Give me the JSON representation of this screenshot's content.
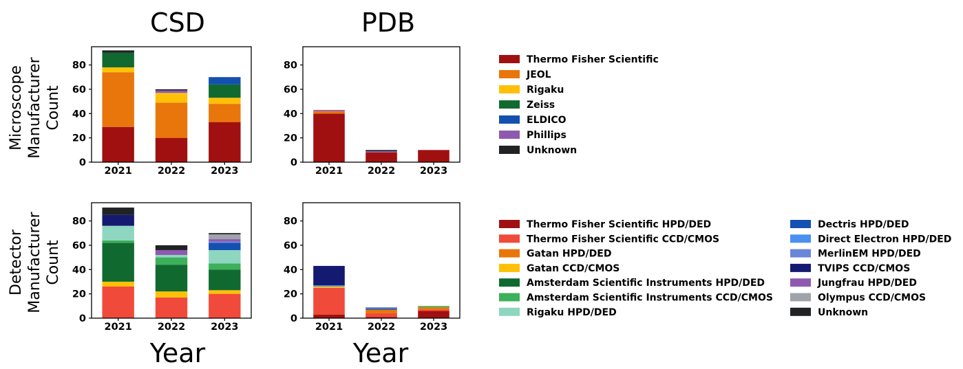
{
  "column_titles": [
    "CSD",
    "PDB"
  ],
  "row_labels": [
    [
      "Microscope",
      "Manufacturer",
      "Count"
    ],
    [
      "Detector",
      "Manufacturer",
      "Count"
    ]
  ],
  "x_label": "Year",
  "legends": {
    "microscope": [
      {
        "name": "Thermo Fisher Scientific",
        "color": "#A01010"
      },
      {
        "name": "JEOL",
        "color": "#E8760A"
      },
      {
        "name": "Rigaku",
        "color": "#FFC107"
      },
      {
        "name": "Zeiss",
        "color": "#106A30"
      },
      {
        "name": "ELDICO",
        "color": "#1450B0"
      },
      {
        "name": "Phillips",
        "color": "#8E5AB0"
      },
      {
        "name": "Unknown",
        "color": "#202224"
      }
    ],
    "detector": [
      {
        "name": "Thermo Fisher Scientific HPD/DED",
        "color": "#A01010"
      },
      {
        "name": "Thermo Fisher Scientific CCD/CMOS",
        "color": "#F04A3A"
      },
      {
        "name": "Gatan HPD/DED",
        "color": "#E8760A"
      },
      {
        "name": "Gatan CCD/CMOS",
        "color": "#FFC107"
      },
      {
        "name": "Amsterdam Scientific Instruments HPD/DED",
        "color": "#106A30"
      },
      {
        "name": "Amsterdam Scientific Instruments CCD/CMOS",
        "color": "#3CB05A"
      },
      {
        "name": "Rigaku HPD/DED",
        "color": "#8ED6C0"
      },
      {
        "name": "Dectris HPD/DED",
        "color": "#1450B0"
      },
      {
        "name": "Direct Electron HPD/DED",
        "color": "#4A90F0"
      },
      {
        "name": "MerlinEM HPD/DED",
        "color": "#6A86D8"
      },
      {
        "name": "TVIPS CCD/CMOS",
        "color": "#141A70"
      },
      {
        "name": "Jungfrau HPD/DED",
        "color": "#8E5AB0"
      },
      {
        "name": "Olympus CCD/CMOS",
        "color": "#A0A4AA"
      },
      {
        "name": "Unknown",
        "color": "#202224"
      }
    ]
  },
  "chart_data": [
    {
      "type": "bar",
      "stacked": true,
      "title": "CSD",
      "ylabel": "Microscope Manufacturer Count",
      "xlabel": "Year",
      "categories": [
        "2021",
        "2022",
        "2023"
      ],
      "ylim": [
        0,
        95
      ],
      "yticks": [
        0,
        20,
        40,
        60,
        80
      ],
      "series": [
        {
          "name": "Thermo Fisher Scientific",
          "values": [
            29,
            20,
            33
          ]
        },
        {
          "name": "JEOL",
          "values": [
            45,
            29,
            15
          ]
        },
        {
          "name": "Rigaku",
          "values": [
            4,
            8,
            5
          ]
        },
        {
          "name": "Zeiss",
          "values": [
            12,
            0,
            11
          ]
        },
        {
          "name": "ELDICO",
          "values": [
            0,
            0,
            6
          ]
        },
        {
          "name": "Phillips",
          "values": [
            0,
            2,
            0
          ]
        },
        {
          "name": "Unknown",
          "values": [
            2,
            1,
            0
          ]
        }
      ]
    },
    {
      "type": "bar",
      "stacked": true,
      "title": "PDB",
      "ylabel": "Microscope Manufacturer Count",
      "xlabel": "Year",
      "categories": [
        "2021",
        "2022",
        "2023"
      ],
      "ylim": [
        0,
        95
      ],
      "yticks": [
        0,
        20,
        40,
        60,
        80
      ],
      "series": [
        {
          "name": "Thermo Fisher Scientific",
          "values": [
            40,
            8,
            10
          ]
        },
        {
          "name": "JEOL",
          "values": [
            2,
            0,
            0
          ]
        },
        {
          "name": "Rigaku",
          "values": [
            0,
            0,
            0
          ]
        },
        {
          "name": "Zeiss",
          "values": [
            0,
            0,
            0
          ]
        },
        {
          "name": "ELDICO",
          "values": [
            0,
            0,
            0
          ]
        },
        {
          "name": "Phillips",
          "values": [
            1,
            1,
            0
          ]
        },
        {
          "name": "Unknown",
          "values": [
            0,
            1,
            0
          ]
        }
      ]
    },
    {
      "type": "bar",
      "stacked": true,
      "title": "CSD",
      "ylabel": "Detector Manufacturer Count",
      "xlabel": "Year",
      "categories": [
        "2021",
        "2022",
        "2023"
      ],
      "ylim": [
        0,
        95
      ],
      "yticks": [
        0,
        20,
        40,
        60,
        80
      ],
      "series": [
        {
          "name": "Thermo Fisher Scientific HPD/DED",
          "values": [
            0,
            0,
            0
          ]
        },
        {
          "name": "Thermo Fisher Scientific CCD/CMOS",
          "values": [
            26,
            17,
            20
          ]
        },
        {
          "name": "Gatan HPD/DED",
          "values": [
            0,
            0,
            0
          ]
        },
        {
          "name": "Gatan CCD/CMOS",
          "values": [
            4,
            5,
            3
          ]
        },
        {
          "name": "Amsterdam Scientific Instruments HPD/DED",
          "values": [
            32,
            22,
            17
          ]
        },
        {
          "name": "Amsterdam Scientific Instruments CCD/CMOS",
          "values": [
            2,
            6,
            5
          ]
        },
        {
          "name": "Rigaku HPD/DED",
          "values": [
            12,
            2,
            11
          ]
        },
        {
          "name": "Dectris HPD/DED",
          "values": [
            0,
            0,
            6
          ]
        },
        {
          "name": "Direct Electron HPD/DED",
          "values": [
            0,
            0,
            0
          ]
        },
        {
          "name": "MerlinEM HPD/DED",
          "values": [
            0,
            0,
            1
          ]
        },
        {
          "name": "TVIPS CCD/CMOS",
          "values": [
            9,
            0,
            0
          ]
        },
        {
          "name": "Jungfrau HPD/DED",
          "values": [
            0,
            4,
            2
          ]
        },
        {
          "name": "Olympus CCD/CMOS",
          "values": [
            0,
            0,
            4
          ]
        },
        {
          "name": "Unknown",
          "values": [
            6,
            4,
            1
          ]
        }
      ]
    },
    {
      "type": "bar",
      "stacked": true,
      "title": "PDB",
      "ylabel": "Detector Manufacturer Count",
      "xlabel": "Year",
      "categories": [
        "2021",
        "2022",
        "2023"
      ],
      "ylim": [
        0,
        95
      ],
      "yticks": [
        0,
        20,
        40,
        60,
        80
      ],
      "series": [
        {
          "name": "Thermo Fisher Scientific HPD/DED",
          "values": [
            3,
            1,
            6
          ]
        },
        {
          "name": "Thermo Fisher Scientific CCD/CMOS",
          "values": [
            22,
            3,
            1
          ]
        },
        {
          "name": "Gatan HPD/DED",
          "values": [
            0,
            3,
            2
          ]
        },
        {
          "name": "Gatan CCD/CMOS",
          "values": [
            1,
            0,
            0
          ]
        },
        {
          "name": "Amsterdam Scientific Instruments HPD/DED",
          "values": [
            0,
            0,
            0
          ]
        },
        {
          "name": "Amsterdam Scientific Instruments CCD/CMOS",
          "values": [
            0,
            0,
            1
          ]
        },
        {
          "name": "Rigaku HPD/DED",
          "values": [
            0,
            0,
            0
          ]
        },
        {
          "name": "Dectris HPD/DED",
          "values": [
            0,
            1,
            0
          ]
        },
        {
          "name": "Direct Electron HPD/DED",
          "values": [
            1,
            0,
            0
          ]
        },
        {
          "name": "MerlinEM HPD/DED",
          "values": [
            0,
            1,
            0
          ]
        },
        {
          "name": "TVIPS CCD/CMOS",
          "values": [
            16,
            0,
            0
          ]
        },
        {
          "name": "Jungfrau HPD/DED",
          "values": [
            0,
            0,
            0
          ]
        },
        {
          "name": "Olympus CCD/CMOS",
          "values": [
            0,
            0,
            0
          ]
        },
        {
          "name": "Unknown",
          "values": [
            0,
            0,
            0
          ]
        }
      ]
    }
  ]
}
